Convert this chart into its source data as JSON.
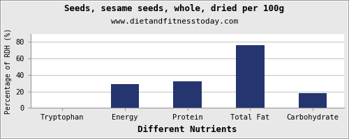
{
  "title": "Seeds, sesame seeds, whole, dried per 100g",
  "subtitle": "www.dietandfitnesstoday.com",
  "xlabel": "Different Nutrients",
  "ylabel": "Percentage of RDH (%)",
  "categories": [
    "Tryptophan",
    "Energy",
    "Protein",
    "Total Fat",
    "Carbohydrate"
  ],
  "values": [
    0.5,
    29,
    32,
    76,
    18
  ],
  "bar_color": "#253570",
  "ylim": [
    0,
    90
  ],
  "yticks": [
    0,
    20,
    40,
    60,
    80
  ],
  "background_color": "#e8e8e8",
  "plot_bg_color": "#ffffff",
  "title_fontsize": 9,
  "subtitle_fontsize": 8,
  "xlabel_fontsize": 9,
  "ylabel_fontsize": 7,
  "tick_fontsize": 7.5,
  "grid_color": "#c0c0c0",
  "border_color": "#999999"
}
